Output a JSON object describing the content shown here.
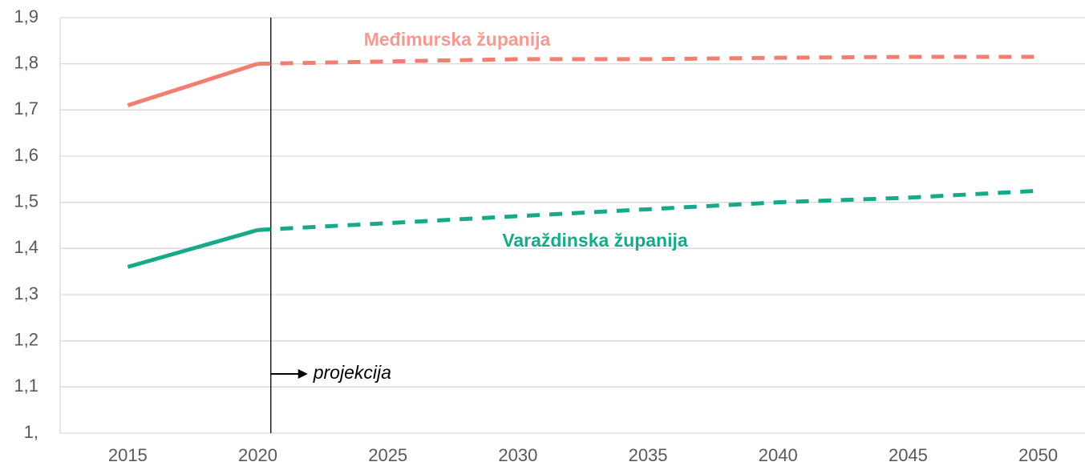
{
  "chart_data": {
    "type": "line",
    "x": [
      2015,
      2020,
      2025,
      2030,
      2035,
      2040,
      2045,
      2050
    ],
    "xlim": [
      2012.4,
      2051.8
    ],
    "xticks": [
      2015,
      2020,
      2025,
      2030,
      2035,
      2040,
      2045,
      2050
    ],
    "ylim": [
      1.0,
      1.9
    ],
    "yticks": [
      {
        "value": 1.0,
        "label": "1,"
      },
      {
        "value": 1.1,
        "label": "1,1"
      },
      {
        "value": 1.2,
        "label": "1,2"
      },
      {
        "value": 1.3,
        "label": "1,3"
      },
      {
        "value": 1.4,
        "label": "1,4"
      },
      {
        "value": 1.5,
        "label": "1,5"
      },
      {
        "value": 1.6,
        "label": "1,6"
      },
      {
        "value": 1.7,
        "label": "1,7"
      },
      {
        "value": 1.8,
        "label": "1,8"
      },
      {
        "value": 1.9,
        "label": "1,9"
      }
    ],
    "grid": true,
    "dashed_from": 2020,
    "series": [
      {
        "name": "Međimurska županija",
        "color": "#f07f72",
        "label_color": "#f59a90",
        "values": [
          1.71,
          1.8,
          1.805,
          1.81,
          1.81,
          1.813,
          1.815,
          1.815
        ]
      },
      {
        "name": "Varaždinska županija",
        "color": "#16a98a",
        "label_color": "#16a98a",
        "values": [
          1.36,
          1.44,
          1.455,
          1.47,
          1.485,
          1.5,
          1.51,
          1.525
        ]
      }
    ],
    "annotation": {
      "text": "projekcija",
      "x": 2020.5
    }
  }
}
